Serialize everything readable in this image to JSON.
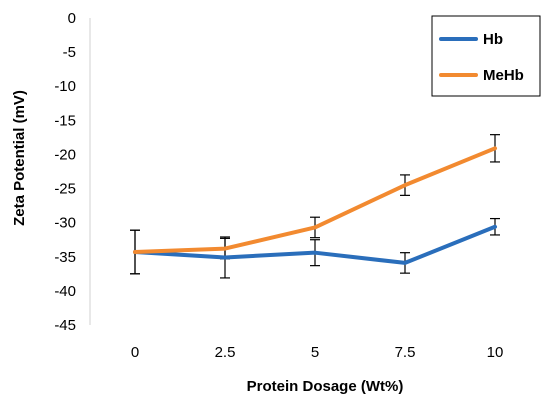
{
  "chart_data": {
    "type": "line",
    "title": "",
    "xlabel": "Protein Dosage (Wt%)",
    "ylabel": "Zeta Potential (mV)",
    "categories": [
      "0",
      "2.5",
      "5",
      "7.5",
      "10"
    ],
    "ylim": [
      -45,
      0
    ],
    "yticks": [
      "0",
      "-5",
      "-10",
      "-15",
      "-20",
      "-25",
      "-30",
      "-35",
      "-40",
      "-45"
    ],
    "grid": false,
    "legend_position": "top-right",
    "series": [
      {
        "name": "Hb",
        "color": "#2a6ebb",
        "values": [
          -34.3,
          -35.1,
          -34.4,
          -35.9,
          -30.6
        ],
        "errors": [
          3.2,
          3.0,
          1.9,
          1.5,
          1.2
        ]
      },
      {
        "name": "MeHb",
        "color": "#f28a30",
        "values": [
          -34.3,
          -33.8,
          -30.7,
          -24.5,
          -19.1
        ],
        "errors": [
          3.2,
          1.5,
          1.5,
          1.5,
          2.0
        ]
      }
    ]
  }
}
